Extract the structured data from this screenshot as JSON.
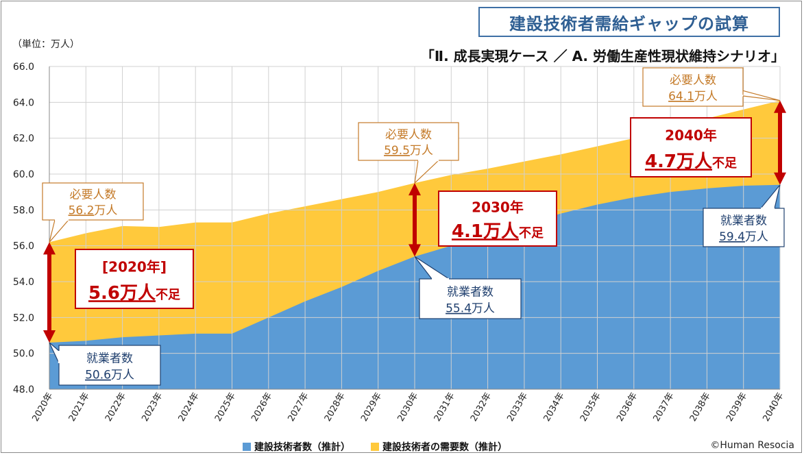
{
  "title": "建設技術者需給ギャップの試算",
  "subtitle": "「Ⅱ. 成長実現ケース ／ A. 労働生産性現状維持シナリオ」",
  "unit_label": "（単位：万人）",
  "copyright": "©Human Resocia",
  "colors": {
    "supply": "#5b9bd5",
    "demand": "#ffc93c",
    "arrow": "#c00000",
    "callout_demand_text": "#c47a28",
    "callout_supply_text": "#1f3f6e",
    "title_border": "#3d6fa5"
  },
  "chart_data": {
    "type": "area",
    "title": "建設技術者需給ギャップの試算",
    "x": [
      "2020年",
      "2021年",
      "2022年",
      "2023年",
      "2024年",
      "2025年",
      "2026年",
      "2027年",
      "2028年",
      "2029年",
      "2030年",
      "2031年",
      "2032年",
      "2033年",
      "2034年",
      "2035年",
      "2036年",
      "2037年",
      "2038年",
      "2039年",
      "2040年"
    ],
    "series": [
      {
        "name": "建設技術者数（推計）",
        "values": [
          50.6,
          50.7,
          50.9,
          51.0,
          51.1,
          51.1,
          52.0,
          52.9,
          53.7,
          54.6,
          55.4,
          56.0,
          56.6,
          57.2,
          57.8,
          58.3,
          58.7,
          59.0,
          59.2,
          59.35,
          59.4
        ]
      },
      {
        "name": "建設技術者の需要数（推計）",
        "values": [
          56.2,
          56.7,
          57.1,
          57.05,
          57.3,
          57.3,
          57.8,
          58.2,
          58.6,
          59.0,
          59.5,
          59.95,
          60.3,
          60.7,
          61.1,
          61.55,
          62.0,
          62.6,
          63.1,
          63.6,
          64.1
        ]
      }
    ],
    "ylim": [
      48.0,
      66.0
    ],
    "yticks": [
      "48.0",
      "50.0",
      "52.0",
      "54.0",
      "56.0",
      "58.0",
      "60.0",
      "62.0",
      "64.0",
      "66.0"
    ],
    "grid": true,
    "legend_position": "bottom"
  },
  "callouts": {
    "demand_2020": {
      "line1": "必要人数",
      "line2_num": "56.2",
      "line2_unit": "万人"
    },
    "demand_2030": {
      "line1": "必要人数",
      "line2_num": "59.5",
      "line2_unit": "万人"
    },
    "demand_2040": {
      "line1": "必要人数",
      "line2_num": "64.1",
      "line2_unit": "万人"
    },
    "supply_2020": {
      "line1": "就業者数",
      "line2_num": "50.6",
      "line2_unit": "万人"
    },
    "supply_2030": {
      "line1": "就業者数",
      "line2_num": "55.4",
      "line2_unit": "万人"
    },
    "supply_2040": {
      "line1": "就業者数",
      "line2_num": "59.4",
      "line2_unit": "万人"
    }
  },
  "gaps": {
    "gap_2020": {
      "year": "[2020年]",
      "amount": "5.6万人",
      "suffix": "不足"
    },
    "gap_2030": {
      "year": "2030年",
      "amount": "4.1万人",
      "suffix": "不足"
    },
    "gap_2040": {
      "year": "2040年",
      "amount": "4.7万人",
      "suffix": "不足"
    }
  }
}
